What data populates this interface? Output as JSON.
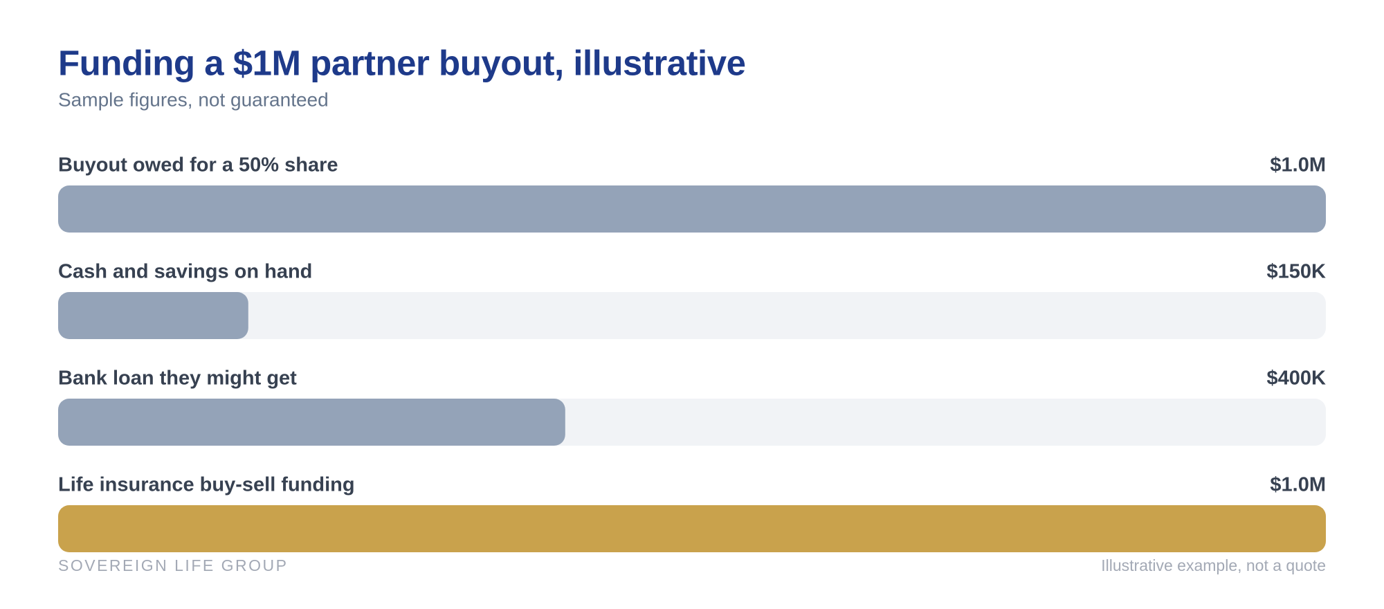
{
  "chart_data": {
    "type": "bar",
    "orientation": "horizontal",
    "title": "Funding a $1M partner buyout, illustrative",
    "subtitle": "Sample figures, not guaranteed",
    "categories": [
      "Buyout owed for a 50% share",
      "Cash and savings on hand",
      "Bank loan they might get",
      "Life insurance buy-sell funding"
    ],
    "values": [
      1000000,
      150000,
      400000,
      1000000
    ],
    "value_labels": [
      "$1.0M",
      "$150K",
      "$400K",
      "$1.0M"
    ],
    "colors": [
      "#94a3b8",
      "#94a3b8",
      "#94a3b8",
      "#c9a24c"
    ],
    "track_color": "#f1f3f6",
    "xlim": [
      0,
      1000000
    ],
    "brand": "SOVEREIGN LIFE GROUP",
    "footnote": "Illustrative example, not a quote"
  }
}
